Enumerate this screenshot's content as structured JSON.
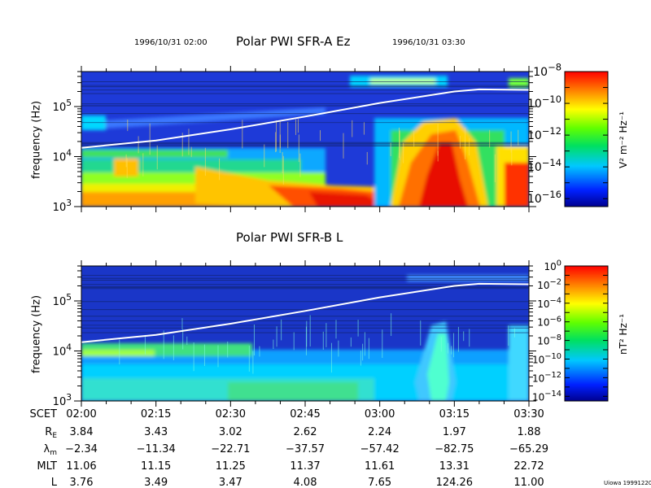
{
  "header": {
    "start_stamp": "1996/10/31 02:00",
    "end_stamp": "1996/10/31 03:30",
    "corner_stamp": "Uiowa 19991220"
  },
  "chart_data": [
    {
      "type": "heatmap",
      "title": "Polar PWI SFR-A Ez",
      "ylabel": "frequency (Hz)",
      "ylim": [
        1000,
        500000
      ],
      "y_scale": "log",
      "y_ticks": [
        "10^3",
        "10^4",
        "10^5"
      ],
      "x_ticks": [
        "02:00",
        "02:15",
        "02:30",
        "02:45",
        "03:00",
        "03:15",
        "03:30"
      ],
      "colorbar": {
        "label": "V² m⁻² Hz⁻¹",
        "scale": "log",
        "ticks": [
          "10^-8",
          "10^-10",
          "10^-12",
          "10^-14",
          "10^-16"
        ],
        "range_exponent": [
          -16.5,
          -8
        ]
      },
      "overlay_line": {
        "description": "white curve",
        "x": [
          "02:00",
          "02:15",
          "02:30",
          "02:45",
          "03:00",
          "03:15",
          "03:20",
          "03:30"
        ],
        "y": [
          15000,
          21000,
          35000,
          63000,
          118000,
          200000,
          220000,
          215000
        ]
      }
    },
    {
      "type": "heatmap",
      "title": "Polar PWI SFR-B L",
      "ylabel": "frequency (Hz)",
      "ylim": [
        1000,
        500000
      ],
      "y_scale": "log",
      "y_ticks": [
        "10^3",
        "10^4",
        "10^5"
      ],
      "x_ticks": [
        "02:00",
        "02:15",
        "02:30",
        "02:45",
        "03:00",
        "03:15",
        "03:30"
      ],
      "colorbar": {
        "label": "nT² Hz⁻¹",
        "scale": "log",
        "ticks": [
          "10^0",
          "10^-2",
          "10^-4",
          "10^-6",
          "10^-8",
          "10^-10",
          "10^-12",
          "10^-14"
        ],
        "range_exponent": [
          -14.5,
          0
        ]
      },
      "overlay_line": {
        "description": "white curve",
        "x": [
          "02:00",
          "02:15",
          "02:30",
          "02:45",
          "03:00",
          "03:15",
          "03:20",
          "03:30"
        ],
        "y": [
          15000,
          21000,
          35000,
          63000,
          118000,
          200000,
          220000,
          215000
        ]
      }
    }
  ],
  "ephemeris": {
    "times": [
      "02:00",
      "02:15",
      "02:30",
      "02:45",
      "03:00",
      "03:15",
      "03:30"
    ],
    "rows": [
      {
        "label": "SCET",
        "values": [
          "02:00",
          "02:15",
          "02:30",
          "02:45",
          "03:00",
          "03:15",
          "03:30"
        ]
      },
      {
        "label": "RE",
        "values": [
          "3.84",
          "3.43",
          "3.02",
          "2.62",
          "2.24",
          "1.97",
          "1.88"
        ]
      },
      {
        "label": "λm",
        "values": [
          "−2.34",
          "−11.34",
          "−22.71",
          "−37.57",
          "−57.42",
          "−82.75",
          "−65.29"
        ]
      },
      {
        "label": "MLT",
        "values": [
          "11.06",
          "11.15",
          "11.25",
          "11.37",
          "11.61",
          "13.31",
          "22.72"
        ]
      },
      {
        "label": "L",
        "values": [
          "3.76",
          "3.49",
          "3.47",
          "4.08",
          "7.65",
          "124.26",
          "11.00"
        ]
      }
    ]
  }
}
